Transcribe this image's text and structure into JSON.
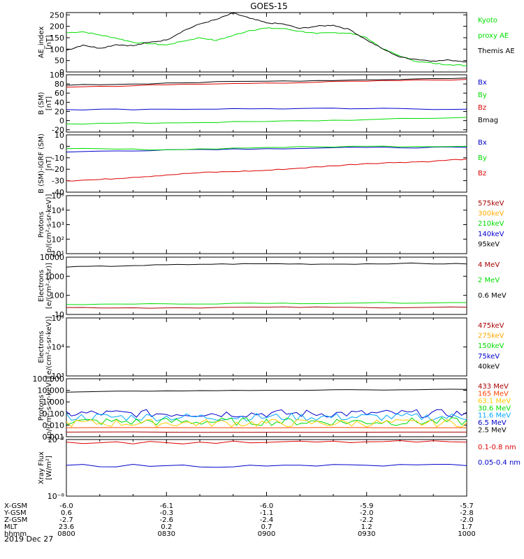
{
  "title": "GOES-15",
  "date_label": "2019 Dec 27",
  "footer": {
    "rows": [
      {
        "label": "X-GSM",
        "values": [
          "-6.0",
          "-6.1",
          "-6.0",
          "-5.9",
          "-5.7"
        ]
      },
      {
        "label": "Y-GSM",
        "values": [
          "0.6",
          "-0.3",
          "-1.1",
          "-2.0",
          "-2.8"
        ]
      },
      {
        "label": "Z-GSM",
        "values": [
          "-2.7",
          "-2.6",
          "-2.4",
          "-2.2",
          "-2.0"
        ]
      },
      {
        "label": "MLT",
        "values": [
          "23.6",
          "0.2",
          "0.7",
          "1.2",
          "1.7"
        ]
      },
      {
        "label": "hhmm",
        "values": [
          "0800",
          "0830",
          "0900",
          "0930",
          "1000"
        ]
      }
    ]
  },
  "chart_data": [
    {
      "type": "line",
      "ylabel": "AE_index\n[nT]",
      "ylim": [
        0,
        260
      ],
      "yticks": [
        "0",
        "50",
        "100",
        "150",
        "200",
        "250"
      ],
      "legend": [
        {
          "name": "Kyoto",
          "color": "#00dd00"
        },
        {
          "name": "proxy AE",
          "color": "#00dd00"
        },
        {
          "name": "Themis AE",
          "color": "#000000"
        }
      ],
      "series": [
        {
          "name": "Kyoto proxy AE",
          "color": "#00dd00",
          "x": [
            0,
            5,
            10,
            15,
            20,
            25,
            30,
            35,
            40,
            45,
            50,
            55,
            60,
            65,
            70,
            75,
            80,
            85,
            90,
            95,
            100,
            105,
            110,
            115,
            120
          ],
          "values": [
            172,
            176,
            162,
            148,
            130,
            124,
            118,
            135,
            150,
            138,
            160,
            182,
            192,
            190,
            178,
            168,
            172,
            170,
            150,
            100,
            70,
            46,
            38,
            32,
            28
          ]
        },
        {
          "name": "Themis AE",
          "color": "#000000",
          "x": [
            0,
            5,
            10,
            15,
            20,
            25,
            30,
            35,
            40,
            45,
            50,
            55,
            60,
            65,
            70,
            75,
            80,
            85,
            90,
            95,
            100,
            105,
            110,
            115,
            120
          ],
          "values": [
            95,
            118,
            104,
            120,
            115,
            130,
            140,
            180,
            210,
            230,
            258,
            235,
            215,
            210,
            190,
            200,
            205,
            185,
            140,
            100,
            65,
            55,
            48,
            52,
            45
          ]
        }
      ]
    },
    {
      "type": "line",
      "ylabel": "B (SM)\n[nT]",
      "ylim": [
        -25,
        100
      ],
      "yticks": [
        "-20",
        "0",
        "20",
        "40",
        "60",
        "80",
        "100"
      ],
      "legend": [
        {
          "name": "Bx",
          "color": "#0000cc"
        },
        {
          "name": "By",
          "color": "#00dd00"
        },
        {
          "name": "Bz",
          "color": "#dd0000"
        },
        {
          "name": "Bmag",
          "color": "#000000"
        }
      ],
      "series": [
        {
          "name": "Bx",
          "color": "#0000cc",
          "x": [
            0,
            30,
            60,
            90,
            120
          ],
          "values": [
            24,
            25,
            26,
            26,
            25
          ]
        },
        {
          "name": "By",
          "color": "#00dd00",
          "x": [
            0,
            30,
            60,
            90,
            120
          ],
          "values": [
            -7,
            -5,
            -2,
            2,
            7
          ]
        },
        {
          "name": "Bz",
          "color": "#dd0000",
          "x": [
            0,
            30,
            60,
            90,
            120
          ],
          "values": [
            73,
            78,
            82,
            86,
            90
          ]
        },
        {
          "name": "Bmag",
          "color": "#000000",
          "x": [
            0,
            30,
            60,
            90,
            120
          ],
          "values": [
            77,
            82,
            86,
            89,
            93
          ]
        }
      ]
    },
    {
      "type": "line",
      "ylabel": "B (SM)-IGRF (SM)\n[nT]",
      "ylim": [
        -40,
        10
      ],
      "yticks": [
        "-40",
        "-30",
        "-20",
        "-10",
        "0",
        "10"
      ],
      "legend": [
        {
          "name": "Bx",
          "color": "#0000cc"
        },
        {
          "name": "By",
          "color": "#00dd00"
        },
        {
          "name": "Bz",
          "color": "#dd0000"
        }
      ],
      "series": [
        {
          "name": "Bx",
          "color": "#0000cc",
          "x": [
            0,
            30,
            60,
            90,
            120
          ],
          "values": [
            -5,
            -3,
            -2,
            -1,
            -1
          ]
        },
        {
          "name": "By",
          "color": "#00dd00",
          "x": [
            0,
            30,
            60,
            90,
            120
          ],
          "values": [
            -2,
            -3,
            -1,
            0,
            0
          ]
        },
        {
          "name": "Bz",
          "color": "#dd0000",
          "x": [
            0,
            10,
            20,
            30,
            40,
            50,
            60,
            70,
            80,
            90,
            100,
            110,
            120
          ],
          "values": [
            -30,
            -29,
            -27,
            -25,
            -23,
            -22,
            -21,
            -19,
            -17,
            -15,
            -14,
            -13,
            -11
          ]
        }
      ]
    },
    {
      "type": "line",
      "scale": "log",
      "ylabel": "Protons\n[p/(cm²-s-sr-keV)]",
      "ylim": [
        1,
        5
      ],
      "yticks": [
        "10¹",
        "10²",
        "10³",
        "10⁴",
        "10⁵"
      ],
      "legend": [
        {
          "name": "575keV",
          "color": "#aa0000"
        },
        {
          "name": "300keV",
          "color": "#ffaa00"
        },
        {
          "name": "210keV",
          "color": "#00dd00"
        },
        {
          "name": "140keV",
          "color": "#0000cc"
        },
        {
          "name": "95keV",
          "color": "#000000"
        }
      ],
      "series": []
    },
    {
      "type": "line",
      "scale": "log",
      "ylabel": "Electrons\n[e/(cm²-s-sr)]",
      "ylim": [
        1,
        4
      ],
      "yticks": [
        "10",
        "100",
        "1000",
        "10000"
      ],
      "legend": [
        {
          "name": "4 MeV",
          "color": "#aa0000"
        },
        {
          "name": "2 MeV",
          "color": "#00dd00"
        },
        {
          "name": "0.6 MeV",
          "color": "#000000"
        }
      ],
      "series": [
        {
          "name": "0.6 MeV",
          "color": "#000000",
          "x": [
            0,
            20,
            40,
            60,
            80,
            100,
            120
          ],
          "values": [
            3000,
            3600,
            4200,
            4500,
            4300,
            4700,
            4400
          ]
        },
        {
          "name": "2 MeV",
          "color": "#00dd00",
          "x": [
            0,
            30,
            60,
            90,
            120
          ],
          "values": [
            33,
            36,
            38,
            40,
            42
          ]
        },
        {
          "name": "4 MeV",
          "color": "#aa0000",
          "x": [
            0,
            30,
            60,
            90,
            120
          ],
          "values": [
            23,
            22,
            24,
            23,
            24
          ]
        }
      ]
    },
    {
      "type": "line",
      "scale": "log",
      "ylabel": "Electrons\n[e/(cm²-s-sr-keV)]",
      "ylim": [
        3,
        5
      ],
      "yticks": [
        "10³",
        "10⁴",
        "10⁵"
      ],
      "legend": [
        {
          "name": "475keV",
          "color": "#aa0000"
        },
        {
          "name": "275keV",
          "color": "#ffaa00"
        },
        {
          "name": "150keV",
          "color": "#00dd00"
        },
        {
          "name": "75keV",
          "color": "#0000cc"
        },
        {
          "name": "40keV",
          "color": "#000000"
        }
      ],
      "series": []
    },
    {
      "type": "line",
      "scale": "log",
      "ylabel": "Protons\n[p/(cm²-s-sr-keV)]",
      "ylim": [
        -3,
        2
      ],
      "yticks": [
        "0.001",
        "0.010",
        "0.100",
        "1.000",
        "10.000",
        "100.000"
      ],
      "legend": [
        {
          "name": "433 MeV",
          "color": "#aa0000"
        },
        {
          "name": "165 MeV",
          "color": "#ff4400"
        },
        {
          "name": "63.1 MeV",
          "color": "#ffcc00"
        },
        {
          "name": "30.6 MeV",
          "color": "#00dd00"
        },
        {
          "name": "11.6 MeV",
          "color": "#00aaff"
        },
        {
          "name": "6.5 MeV",
          "color": "#0000cc"
        },
        {
          "name": "2.5 MeV",
          "color": "#000000"
        }
      ],
      "series": [
        {
          "name": "2.5 MeV",
          "color": "#000000",
          "x": [
            0,
            30,
            60,
            90,
            120
          ],
          "values": [
            7,
            9,
            10,
            11,
            12
          ]
        },
        {
          "name": "6.5 MeV",
          "color": "#0000cc",
          "noisy": true,
          "x": [
            0,
            120
          ],
          "values": [
            0.1,
            0.1
          ]
        },
        {
          "name": "11.6 MeV",
          "color": "#00aaff",
          "noisy": true,
          "x": [
            0,
            120
          ],
          "values": [
            0.05,
            0.05
          ]
        },
        {
          "name": "30.6 MeV",
          "color": "#00dd00",
          "noisy": true,
          "x": [
            0,
            120
          ],
          "values": [
            0.02,
            0.02
          ]
        },
        {
          "name": "63.1 MeV",
          "color": "#ffcc00",
          "noisy": true,
          "x": [
            0,
            120
          ],
          "values": [
            0.015,
            0.015
          ]
        },
        {
          "name": "165 MeV",
          "color": "#ff4400",
          "x": [
            0,
            120
          ],
          "values": [
            0.006,
            0.006
          ]
        },
        {
          "name": "433 MeV",
          "color": "#aa0000",
          "x": [
            0,
            120
          ],
          "values": [
            0.0025,
            0.0025
          ]
        }
      ]
    },
    {
      "type": "line",
      "scale": "log",
      "ylabel": "Xray Flux\n[W/m²]",
      "ylim": [
        -8,
        -7
      ],
      "yticks": [
        "10⁻⁸",
        "10⁻⁷"
      ],
      "legend": [
        {
          "name": "0.1-0.8 nm",
          "color": "#dd0000"
        },
        {
          "name": "0.05-0.4 nm",
          "color": "#0000cc"
        }
      ],
      "series": [
        {
          "name": "0.1-0.8 nm",
          "color": "#dd0000",
          "x": [
            0,
            30,
            60,
            90,
            120
          ],
          "values": [
            9e-08,
            8.8e-08,
            8.9e-08,
            9.1e-08,
            9e-08
          ]
        },
        {
          "name": "0.05-0.4 nm",
          "color": "#0000cc",
          "x": [
            0,
            30,
            60,
            90,
            120
          ],
          "values": [
            3.5e-08,
            3.45e-08,
            3.4e-08,
            3.5e-08,
            3.45e-08
          ]
        }
      ]
    }
  ]
}
